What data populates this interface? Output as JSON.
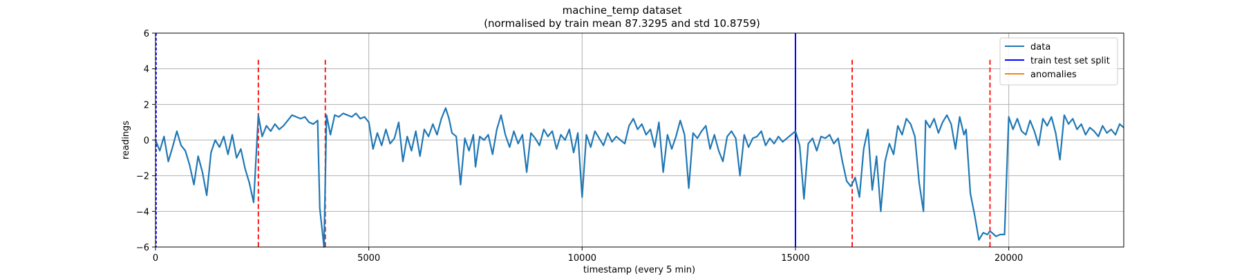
{
  "chart_data": {
    "type": "line",
    "title": "machine_temp dataset",
    "subtitle": "(normalised by train mean 87.3295 and std 10.8759)",
    "xlabel": "timestamp (every 5 min)",
    "ylabel": "readings",
    "xlim": [
      0,
      22695
    ],
    "ylim": [
      -6,
      6
    ],
    "xticks": [
      0,
      5000,
      10000,
      15000,
      20000
    ],
    "yticks": [
      -6,
      -4,
      -2,
      0,
      2,
      4,
      6
    ],
    "grid": true,
    "legend_position": "top-right",
    "legend": [
      "data",
      "train test set split",
      "anomalies"
    ],
    "colors": {
      "data": "#1f77b4",
      "split": "#0000ff",
      "anomalies": "#ff7f0e",
      "anomaly_markers": "#ff0000",
      "grid": "#b0b0b0"
    },
    "series": [
      {
        "name": "data",
        "x": [
          0,
          100,
          200,
          300,
          400,
          500,
          600,
          700,
          800,
          900,
          1000,
          1100,
          1200,
          1300,
          1400,
          1500,
          1600,
          1700,
          1800,
          1900,
          2000,
          2100,
          2200,
          2300,
          2410,
          2500,
          2600,
          2700,
          2800,
          2900,
          3000,
          3100,
          3200,
          3300,
          3400,
          3500,
          3600,
          3700,
          3800,
          3850,
          3950,
          4010,
          4100,
          4200,
          4300,
          4400,
          4500,
          4600,
          4700,
          4800,
          4900,
          5000,
          5100,
          5200,
          5300,
          5400,
          5500,
          5600,
          5700,
          5800,
          5900,
          6000,
          6100,
          6200,
          6300,
          6400,
          6500,
          6600,
          6700,
          6800,
          6880,
          6950,
          7050,
          7150,
          7250,
          7350,
          7450,
          7500,
          7600,
          7700,
          7800,
          7900,
          8000,
          8100,
          8200,
          8300,
          8400,
          8500,
          8600,
          8700,
          8800,
          8900,
          9000,
          9100,
          9200,
          9300,
          9400,
          9500,
          9600,
          9700,
          9800,
          9900,
          10000,
          10100,
          10200,
          10300,
          10400,
          10500,
          10600,
          10700,
          10800,
          10900,
          11000,
          11100,
          11200,
          11300,
          11400,
          11500,
          11600,
          11700,
          11800,
          11900,
          12000,
          12100,
          12200,
          12300,
          12400,
          12500,
          12600,
          12700,
          12800,
          12900,
          13000,
          13100,
          13200,
          13300,
          13400,
          13500,
          13600,
          13700,
          13800,
          13900,
          14000,
          14100,
          14200,
          14300,
          14400,
          14500,
          14600,
          14700,
          14800,
          14900,
          15000,
          15100,
          15200,
          15300,
          15400,
          15500,
          15600,
          15700,
          15800,
          15900,
          16000,
          16100,
          16200,
          16300,
          16400,
          16500,
          16600,
          16700,
          16800,
          16900,
          17000,
          17100,
          17200,
          17300,
          17400,
          17500,
          17600,
          17700,
          17800,
          17900,
          18000,
          18050,
          18150,
          18250,
          18350,
          18450,
          18550,
          18650,
          18750,
          18850,
          18950,
          19000,
          19100,
          19200,
          19300,
          19400,
          19500,
          19560,
          19700,
          19800,
          19900,
          20000,
          20100,
          20200,
          20300,
          20400,
          20500,
          20600,
          20700,
          20800,
          20900,
          21000,
          21100,
          21200,
          21300,
          21400,
          21500,
          21600,
          21700,
          21800,
          21900,
          22000,
          22100,
          22200,
          22300,
          22400,
          22500,
          22600,
          22695
        ],
        "y": [
          0.0,
          -0.6,
          0.2,
          -1.2,
          -0.4,
          0.5,
          -0.3,
          -0.6,
          -1.4,
          -2.5,
          -0.9,
          -1.8,
          -3.1,
          -0.7,
          0.0,
          -0.4,
          0.2,
          -0.8,
          0.3,
          -1.0,
          -0.5,
          -1.6,
          -2.4,
          -3.5,
          1.4,
          0.2,
          0.8,
          0.5,
          0.9,
          0.6,
          0.8,
          1.1,
          1.4,
          1.3,
          1.2,
          1.3,
          1.0,
          0.9,
          1.1,
          -3.8,
          -6.0,
          1.4,
          0.3,
          1.4,
          1.3,
          1.5,
          1.4,
          1.3,
          1.5,
          1.2,
          1.3,
          1.0,
          -0.5,
          0.4,
          -0.3,
          0.6,
          -0.2,
          0.1,
          1.0,
          -1.2,
          0.2,
          -0.6,
          0.5,
          -0.9,
          0.6,
          0.2,
          0.9,
          0.3,
          1.2,
          1.8,
          1.2,
          0.4,
          0.2,
          -2.5,
          0.1,
          -0.6,
          0.3,
          -1.5,
          0.2,
          0.0,
          0.3,
          -0.8,
          0.6,
          1.4,
          0.3,
          -0.4,
          0.5,
          -0.2,
          0.3,
          -1.8,
          0.4,
          0.1,
          -0.3,
          0.6,
          0.2,
          0.5,
          -0.5,
          0.3,
          0.0,
          0.6,
          -0.7,
          0.4,
          -3.2,
          0.3,
          -0.4,
          0.5,
          0.1,
          -0.3,
          0.4,
          -0.1,
          0.2,
          0.0,
          -0.2,
          0.8,
          1.2,
          0.6,
          0.9,
          0.3,
          0.6,
          -0.4,
          1.0,
          -1.8,
          0.3,
          -0.5,
          0.2,
          1.1,
          0.3,
          -2.7,
          0.4,
          0.1,
          0.5,
          0.8,
          -0.5,
          0.3,
          -0.6,
          -1.2,
          0.2,
          0.5,
          0.1,
          -2.0,
          0.3,
          -0.4,
          0.1,
          0.2,
          0.5,
          -0.3,
          0.1,
          -0.2,
          0.2,
          -0.1,
          0.1,
          0.3,
          0.5,
          -0.3,
          -3.3,
          -0.2,
          0.1,
          -0.6,
          0.2,
          0.1,
          0.3,
          -0.2,
          0.1,
          -1.2,
          -2.3,
          -2.6,
          -2.1,
          -3.2,
          -0.5,
          0.6,
          -2.8,
          -0.9,
          -4.0,
          -1.2,
          -0.2,
          -0.8,
          0.8,
          0.3,
          1.2,
          0.9,
          0.2,
          -2.4,
          -4.0,
          1.1,
          0.7,
          1.2,
          0.4,
          1.0,
          1.4,
          0.9,
          -0.5,
          1.3,
          0.3,
          0.6,
          -3.0,
          -4.2,
          -5.6,
          -5.2,
          -5.3,
          -5.1,
          -5.4,
          -5.3,
          -5.3,
          1.3,
          0.6,
          1.2,
          0.5,
          0.3,
          1.1,
          0.5,
          -0.3,
          1.2,
          0.8,
          1.3,
          0.4,
          -1.1,
          1.4,
          0.9,
          1.2,
          0.6,
          0.9,
          0.3,
          0.7,
          0.5,
          0.2,
          0.8,
          0.4,
          0.6,
          0.3,
          0.9,
          0.7
        ]
      }
    ],
    "train_test_split": 15000,
    "anomaly_markers": [
      2410,
      3980,
      16330,
      19560
    ]
  }
}
